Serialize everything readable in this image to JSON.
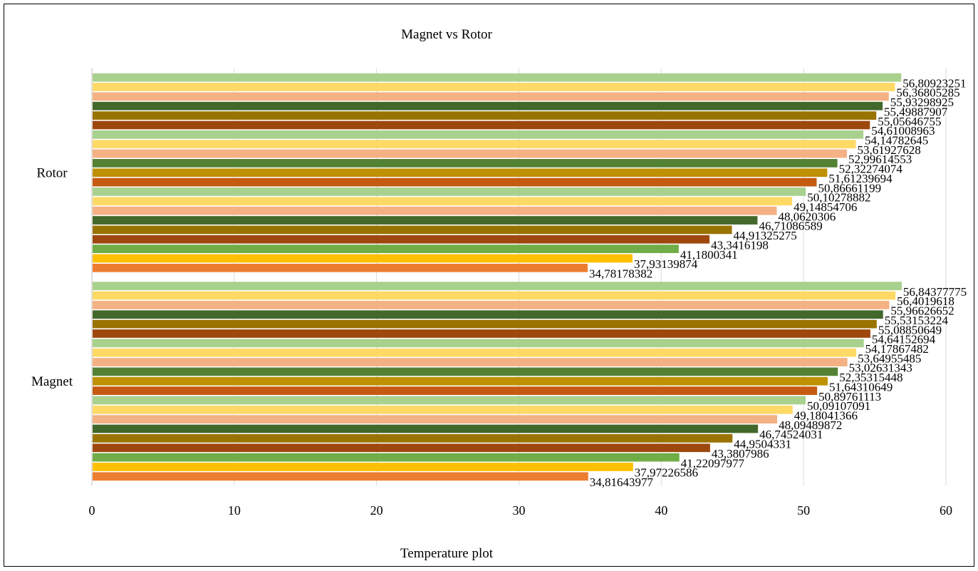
{
  "chart_data": {
    "type": "bar",
    "orientation": "horizontal",
    "title": "Magnet vs Rotor",
    "xlabel": "Temperature plot",
    "ylabel": "",
    "xlim": [
      0,
      60
    ],
    "xticks": [
      "0",
      "10",
      "20",
      "30",
      "40",
      "50",
      "60"
    ],
    "grid": true,
    "legend": "none",
    "categories": [
      "Magnet",
      "Rotor"
    ],
    "series_colors": [
      "#ED7D31",
      "#FFC000",
      "#70AD47",
      "#9E480E",
      "#997300",
      "#43682B",
      "#F4B183",
      "#FFD966",
      "#A9D18E",
      "#C55A11",
      "#BF9000",
      "#548235",
      "#F4B183",
      "#FFD966",
      "#A9D18E",
      "#9E480E",
      "#997300",
      "#43682B",
      "#F4B183",
      "#FFD966",
      "#A9D18E"
    ],
    "groups": [
      {
        "category": "Rotor",
        "values": [
          34.78178382,
          37.93139874,
          41.1800341,
          43.3416198,
          44.91325275,
          46.71086589,
          48.0620306,
          49.14854706,
          50.10278882,
          50.86661199,
          51.61239694,
          52.32274074,
          52.99614553,
          53.61927628,
          54.14782645,
          54.61008963,
          55.05646755,
          55.49887907,
          55.93298925,
          56.36805285,
          56.80923251
        ],
        "labels": [
          "34,78178382",
          "37,93139874",
          "41,1800341",
          "43,3416198",
          "44,91325275",
          "46,71086589",
          "48,0620306",
          "49,14854706",
          "50,10278882",
          "50,86661199",
          "51,61239694",
          "52,32274074",
          "52,99614553",
          "53,61927628",
          "54,14782645",
          "54,61008963",
          "55,05646755",
          "55,49887907",
          "55,93298925",
          "56,36805285",
          "56,80923251"
        ]
      },
      {
        "category": "Magnet",
        "values": [
          34.81643977,
          37.97226586,
          41.22097977,
          43.3807986,
          44.9504331,
          46.74524031,
          48.09489872,
          49.18041366,
          50.09107091,
          50.89761113,
          51.64310649,
          52.35315448,
          53.02631343,
          53.64955485,
          54.17867482,
          54.64152694,
          55.08850649,
          55.53153224,
          55.96626652,
          56.4019618,
          56.84377775
        ],
        "labels": [
          "34,81643977",
          "37,97226586",
          "41,22097977",
          "43,3807986",
          "44,9504331",
          "46,74524031",
          "48,09489872",
          "49,18041366",
          "50,09107091",
          "50,89761113",
          "51,64310649",
          "52,35315448",
          "53,02631343",
          "53,64955485",
          "54,17867482",
          "54,64152694",
          "55,08850649",
          "55,53153224",
          "55,96626652",
          "56,4019618",
          "56,84377775"
        ]
      }
    ]
  }
}
